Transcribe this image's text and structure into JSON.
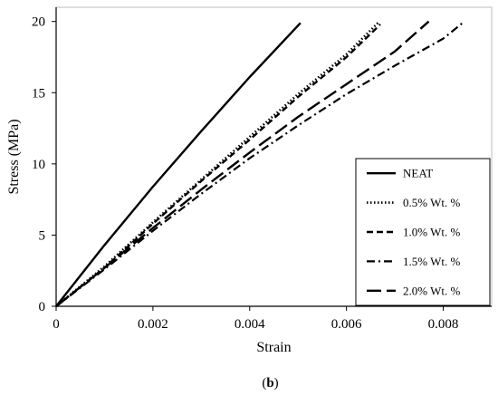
{
  "chart_data": {
    "type": "line",
    "title": "",
    "xlabel": "Strain",
    "ylabel": "Stress (MPa)",
    "xlim": [
      0,
      0.009
    ],
    "ylim": [
      0,
      21
    ],
    "x_ticks": [
      "0",
      "0.002",
      "0.004",
      "0.006",
      "0.008"
    ],
    "y_ticks": [
      "0",
      "5",
      "10",
      "15",
      "20"
    ],
    "grid": false,
    "legend_position": "bottom-right",
    "series": [
      {
        "name": "NEAT",
        "style": "solid",
        "x": [
          0,
          0.001,
          0.002,
          0.003,
          0.004,
          0.00505
        ],
        "y": [
          0,
          4.3,
          8.4,
          12.3,
          16.1,
          19.9
        ]
      },
      {
        "name": "0.5% Wt. %",
        "style": "dotted",
        "x": [
          0,
          0.001,
          0.002,
          0.003,
          0.004,
          0.005,
          0.006,
          0.00665
        ],
        "y": [
          0,
          2.8,
          5.9,
          8.9,
          11.9,
          14.9,
          17.7,
          19.9
        ]
      },
      {
        "name": "1.0% Wt. %",
        "style": "dashed",
        "x": [
          0,
          0.001,
          0.002,
          0.003,
          0.004,
          0.005,
          0.006,
          0.0067
        ],
        "y": [
          0,
          2.7,
          5.8,
          8.8,
          11.7,
          14.7,
          17.5,
          19.8
        ]
      },
      {
        "name": "1.5% Wt. %",
        "style": "dash-dot",
        "x": [
          0,
          0.001,
          0.002,
          0.003,
          0.004,
          0.005,
          0.006,
          0.007,
          0.008,
          0.0084
        ],
        "y": [
          0,
          2.6,
          5.3,
          7.9,
          10.4,
          12.7,
          14.9,
          16.9,
          18.8,
          19.9
        ]
      },
      {
        "name": "2.0% Wt. %",
        "style": "long-dash",
        "x": [
          0,
          0.001,
          0.002,
          0.003,
          0.004,
          0.005,
          0.006,
          0.007,
          0.0077
        ],
        "y": [
          0,
          2.7,
          5.5,
          8.2,
          10.8,
          13.3,
          15.6,
          17.9,
          20.0
        ]
      }
    ]
  },
  "caption": {
    "open": "(",
    "letter": "b",
    "close": ")"
  }
}
